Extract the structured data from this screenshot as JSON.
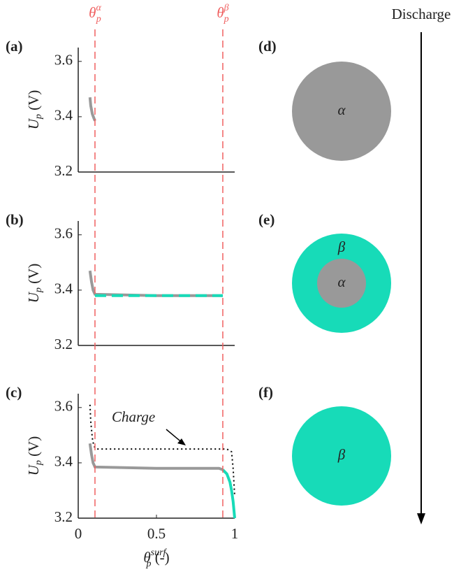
{
  "chart_data": [
    {
      "type": "line",
      "label": "(a)",
      "ylabel": {
        "symbol": "U",
        "sub": "p",
        "unit": " (V)"
      },
      "xlim": [
        0,
        1
      ],
      "ylim": [
        3.2,
        3.65
      ],
      "yticks": [
        3.2,
        3.4,
        3.6
      ],
      "series": [
        {
          "color": "#999999",
          "style": "solid",
          "x": [
            0.075,
            0.08,
            0.09,
            0.1,
            0.107
          ],
          "values": [
            3.47,
            3.44,
            3.41,
            3.395,
            3.385
          ]
        }
      ]
    },
    {
      "type": "line",
      "label": "(b)",
      "ylabel": {
        "symbol": "U",
        "sub": "p",
        "unit": " (V)"
      },
      "xlim": [
        0,
        1
      ],
      "ylim": [
        3.2,
        3.65
      ],
      "yticks": [
        3.2,
        3.4,
        3.6
      ],
      "series": [
        {
          "color": "#999999",
          "style": "solid",
          "x": [
            0.075,
            0.085,
            0.095,
            0.107,
            0.5,
            0.924
          ],
          "values": [
            3.47,
            3.43,
            3.4,
            3.385,
            3.38,
            3.38
          ]
        },
        {
          "color": "#17dbb8",
          "style": "dashed",
          "x": [
            0.107,
            0.5,
            0.924
          ],
          "values": [
            3.38,
            3.38,
            3.38
          ]
        }
      ]
    },
    {
      "type": "line",
      "label": "(c)",
      "ylabel": {
        "symbol": "U",
        "sub": "p",
        "unit": " (V)"
      },
      "xlabel": {
        "symbol": "θ",
        "sub": "p",
        "sup": "surf",
        "unit": " (-)"
      },
      "annotation": "Charge",
      "xlim": [
        0,
        1
      ],
      "ylim": [
        3.2,
        3.65
      ],
      "yticks": [
        3.2,
        3.4,
        3.6
      ],
      "xticks": [
        0,
        0.5,
        1
      ],
      "series": [
        {
          "color": "#999999",
          "style": "solid",
          "x": [
            0.075,
            0.085,
            0.095,
            0.107,
            0.5,
            0.9,
            0.924
          ],
          "values": [
            3.47,
            3.43,
            3.4,
            3.385,
            3.38,
            3.38,
            3.375
          ]
        },
        {
          "color": "#17dbb8",
          "style": "solid",
          "x": [
            0.924,
            0.95,
            0.97,
            0.98,
            0.99,
            1.0
          ],
          "values": [
            3.375,
            3.36,
            3.33,
            3.3,
            3.26,
            3.2
          ]
        },
        {
          "color": "#000000",
          "style": "dotted",
          "x": [
            0.075,
            0.08,
            0.09,
            0.1,
            0.12,
            0.5,
            0.95,
            0.98,
            0.99,
            1.0
          ],
          "values": [
            3.61,
            3.55,
            3.49,
            3.46,
            3.45,
            3.45,
            3.45,
            3.44,
            3.38,
            3.28
          ]
        }
      ]
    }
  ],
  "phase_boundaries": [
    {
      "value": 0.107,
      "symbol": "θ",
      "sub": "p",
      "sup": "α",
      "color": "#f06060"
    },
    {
      "value": 0.924,
      "symbol": "θ",
      "sub": "p",
      "sup": "β",
      "color": "#f06060"
    }
  ],
  "diagrams": [
    {
      "label": "(d)",
      "inner": "α"
    },
    {
      "label": "(e)",
      "inner": "α",
      "outer": "β"
    },
    {
      "label": "(f)",
      "outer": "β"
    }
  ],
  "arrow_label": "Discharge"
}
